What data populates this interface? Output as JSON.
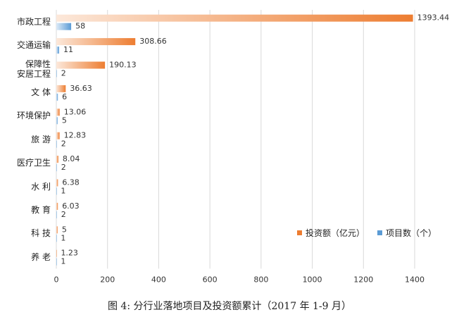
{
  "chart_data": {
    "type": "bar",
    "orientation": "horizontal",
    "title": "图 4: 分行业落地项目及投资额累计（2017 年 1-9 月）",
    "categories": [
      "市政工程",
      "交通运输",
      "保障性\n安居工程",
      "文 体",
      "环境保护",
      "旅 游",
      "医疗卫生",
      "水 利",
      "教 育",
      "科 技",
      "养 老"
    ],
    "series": [
      {
        "name": "投资额（亿元）",
        "color": "#ED7D31",
        "values": [
          1393.44,
          308.66,
          190.13,
          36.63,
          13.06,
          12.83,
          8.04,
          6.38,
          6.03,
          5,
          1.23
        ]
      },
      {
        "name": "项目数（个）",
        "color": "#5B9BD5",
        "values": [
          58,
          11,
          2,
          6,
          5,
          2,
          2,
          1,
          2,
          1,
          1
        ]
      }
    ],
    "xlim": [
      0,
      1400
    ],
    "xticks": [
      0,
      200,
      400,
      600,
      800,
      1000,
      1200,
      1400
    ],
    "grid": true
  }
}
